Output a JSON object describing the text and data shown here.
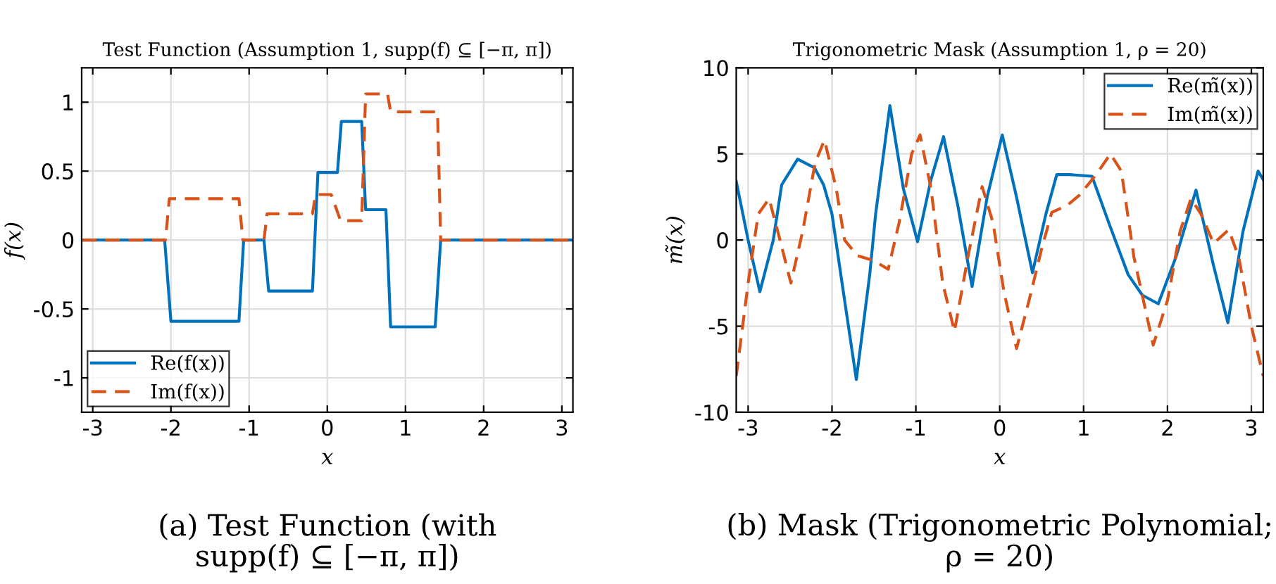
{
  "chart_data": [
    {
      "type": "line",
      "title": "Test Function (Assumption 1, supp(f) ⊆ [−π, π])",
      "xlabel": "x",
      "ylabel": "f(x)",
      "xlim": [
        -3.1416,
        3.1416
      ],
      "ylim": [
        -1.25,
        1.25
      ],
      "xticks": [
        -3,
        -2,
        -1,
        0,
        1,
        2,
        3
      ],
      "yticks": [
        -1,
        -0.5,
        0,
        0.5,
        1
      ],
      "grid": true,
      "legend": "bottom left",
      "series": [
        {
          "name": "Re(f(x))",
          "color": "#0072bd",
          "line_style": "solid",
          "x": [
            -3.1416,
            -2.08,
            -2.0,
            -1.13,
            -1.07,
            -0.81,
            -0.75,
            -0.19,
            -0.12,
            0.13,
            0.18,
            0.44,
            0.49,
            0.75,
            0.81,
            1.38,
            1.45,
            3.1416
          ],
          "values": [
            0,
            0,
            -0.59,
            -0.59,
            0,
            0,
            -0.37,
            -0.37,
            0.49,
            0.49,
            0.86,
            0.86,
            0.22,
            0.22,
            -0.63,
            -0.63,
            0,
            0
          ]
        },
        {
          "name": "Im(f(x))",
          "color": "#d95319",
          "line_style": "dashed",
          "x": [
            -3.1416,
            -2.07,
            -2.02,
            -1.13,
            -1.08,
            -0.81,
            -0.77,
            -0.19,
            -0.15,
            0.05,
            0.17,
            0.44,
            0.49,
            0.77,
            0.81,
            1.41,
            1.45,
            3.1416
          ],
          "values": [
            0,
            0,
            0.3,
            0.3,
            0,
            0,
            0.19,
            0.19,
            0.33,
            0.33,
            0.14,
            0.14,
            1.06,
            1.06,
            0.93,
            0.93,
            0,
            0
          ]
        }
      ],
      "annotations": [
        "(a) Test Function (with\nsupp(f) ⊆ [−π, π])"
      ]
    },
    {
      "type": "line",
      "title": "Trigonometric Mask (Assumption 1, ρ = 20)",
      "xlabel": "x",
      "ylabel": "m̃(x)",
      "xlim": [
        -3.1416,
        3.1416
      ],
      "ylim": [
        -10,
        10
      ],
      "xticks": [
        -3,
        -2,
        -1,
        0,
        1,
        2,
        3
      ],
      "yticks": [
        -10,
        -5,
        0,
        5,
        10
      ],
      "grid": true,
      "legend": "top right",
      "series": [
        {
          "name": "Re(m̃(x))",
          "color": "#0072bd",
          "line_style": "solid",
          "x": [
            -3.1416,
            -3.0,
            -2.86,
            -2.7,
            -2.6,
            -2.41,
            -2.21,
            -2.1,
            -2.0,
            -1.88,
            -1.71,
            -1.55,
            -1.48,
            -1.31,
            -1.15,
            -0.98,
            -0.82,
            -0.67,
            -0.5,
            -0.33,
            -0.15,
            0.03,
            0.2,
            0.39,
            0.55,
            0.68,
            0.83,
            1.1,
            1.3,
            1.53,
            1.7,
            1.89,
            2.1,
            2.34,
            2.55,
            2.72,
            2.9,
            3.08,
            3.1416
          ],
          "values": [
            3.4,
            0.0,
            -3.0,
            0.0,
            3.2,
            4.7,
            4.2,
            3.2,
            1.5,
            -2.5,
            -8.1,
            -2.0,
            1.5,
            7.8,
            3.0,
            -0.1,
            3.5,
            6.0,
            2.0,
            -2.7,
            2.5,
            6.1,
            2.5,
            -1.9,
            1.5,
            3.8,
            3.8,
            3.7,
            1.0,
            -2.0,
            -3.2,
            -3.7,
            -1.0,
            2.9,
            -1.5,
            -4.8,
            0.5,
            4.0,
            3.5
          ]
        },
        {
          "name": "Im(m̃(x))",
          "color": "#d95319",
          "line_style": "dashed",
          "x": [
            -3.1416,
            -3.0,
            -2.88,
            -2.75,
            -2.62,
            -2.49,
            -2.35,
            -2.2,
            -2.09,
            -1.95,
            -1.85,
            -1.7,
            -1.5,
            -1.33,
            -1.2,
            -1.05,
            -0.95,
            -0.82,
            -0.68,
            -0.54,
            -0.38,
            -0.21,
            -0.08,
            0.05,
            0.2,
            0.35,
            0.5,
            0.62,
            0.8,
            0.95,
            1.15,
            1.32,
            1.45,
            1.6,
            1.83,
            2.0,
            2.15,
            2.28,
            2.4,
            2.55,
            2.73,
            2.85,
            3.0,
            3.1416
          ],
          "values": [
            -7.9,
            -2.5,
            1.5,
            2.4,
            0.0,
            -2.5,
            0.5,
            4.5,
            5.8,
            3.0,
            0.0,
            -0.9,
            -1.2,
            -1.7,
            1.0,
            5.0,
            6.1,
            3.0,
            -2.5,
            -5.3,
            -1.0,
            3.1,
            1.0,
            -3.0,
            -6.3,
            -3.5,
            -0.5,
            1.6,
            2.0,
            2.6,
            3.8,
            5.0,
            4.0,
            -1.0,
            -6.1,
            -3.5,
            0.5,
            2.4,
            1.5,
            -0.2,
            0.6,
            -1.0,
            -5.0,
            -7.9
          ]
        }
      ],
      "annotations": [
        "(b) Mask (Trigonometric Polynomial;\nρ = 20)"
      ]
    }
  ]
}
